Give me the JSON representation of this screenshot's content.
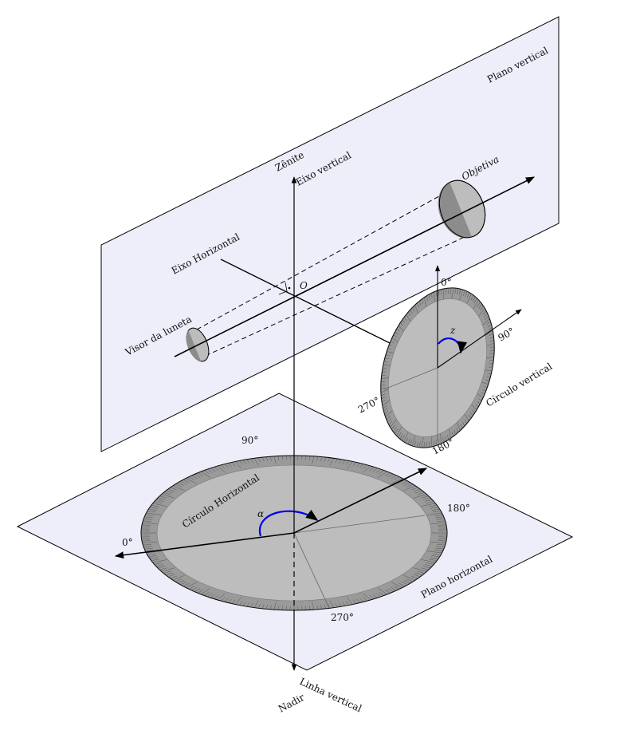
{
  "colors": {
    "plane_fill": "#eeeefb",
    "disk_fill": "#bdbdbd",
    "ring_fill": "#9a9a9a",
    "dark_fill": "#8c8c8c",
    "angle_arc": "#0000ee",
    "stroke": "#000000"
  },
  "labels": {
    "plano_vertical": "Plano vertical",
    "plano_horizontal": "Plano horizontal",
    "zenite": "Zênite",
    "eixo_vertical": "Eixo vertical",
    "eixo_horizontal": "Eixo Horizontal",
    "objetiva": "Objetiva",
    "visor": "Visor da luneta",
    "origem": "O",
    "circulo_vertical": "Círculo vertical",
    "circulo_horizontal": "Círculo Horizontal",
    "nadir": "Nadir",
    "linha_vertical": "Linha vertical",
    "alpha": "α",
    "z": "z"
  },
  "vertical_circle": {
    "ticks": [
      "0°",
      "90°",
      "180°",
      "270°"
    ]
  },
  "horizontal_circle": {
    "ticks": [
      "0°",
      "90°",
      "180°",
      "270°"
    ]
  }
}
